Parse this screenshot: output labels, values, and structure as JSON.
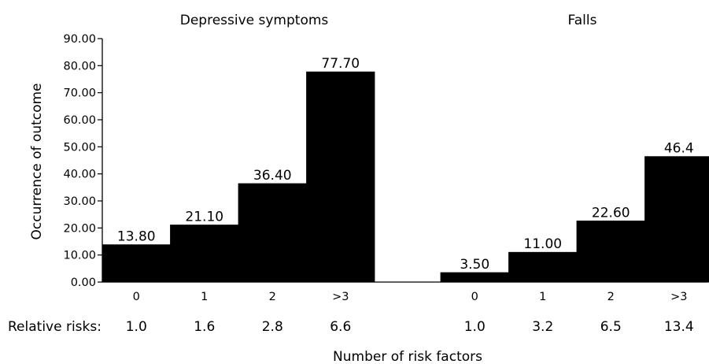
{
  "chart_data": {
    "type": "bar",
    "ylabel": "Occurrence of outcome",
    "xlabel": "Number of risk factors",
    "ylim": [
      0,
      90
    ],
    "yticks": [
      "0.00",
      "10.00",
      "20.00",
      "30.00",
      "40.00",
      "50.00",
      "60.00",
      "70.00",
      "80.00",
      "90.00"
    ],
    "relative_risks_label": "Relative risks:",
    "bar_color": "#000000",
    "grid": false,
    "panels": [
      {
        "title": "Depressive symptoms",
        "categories": [
          "0",
          "1",
          "2",
          ">3"
        ],
        "values": [
          13.8,
          21.1,
          36.4,
          77.7
        ],
        "value_labels": [
          "13.80",
          "21.10",
          "36.40",
          "77.70"
        ],
        "relative_risks": [
          "1.0",
          "1.6",
          "2.8",
          "6.6"
        ]
      },
      {
        "title": "Falls",
        "categories": [
          "0",
          "1",
          "2",
          ">3"
        ],
        "values": [
          3.5,
          11.0,
          22.6,
          46.4
        ],
        "value_labels": [
          "3.50",
          "11.00",
          "22.60",
          "46.4"
        ],
        "relative_risks": [
          "1.0",
          "3.2",
          "6.5",
          "13.4"
        ]
      }
    ]
  }
}
